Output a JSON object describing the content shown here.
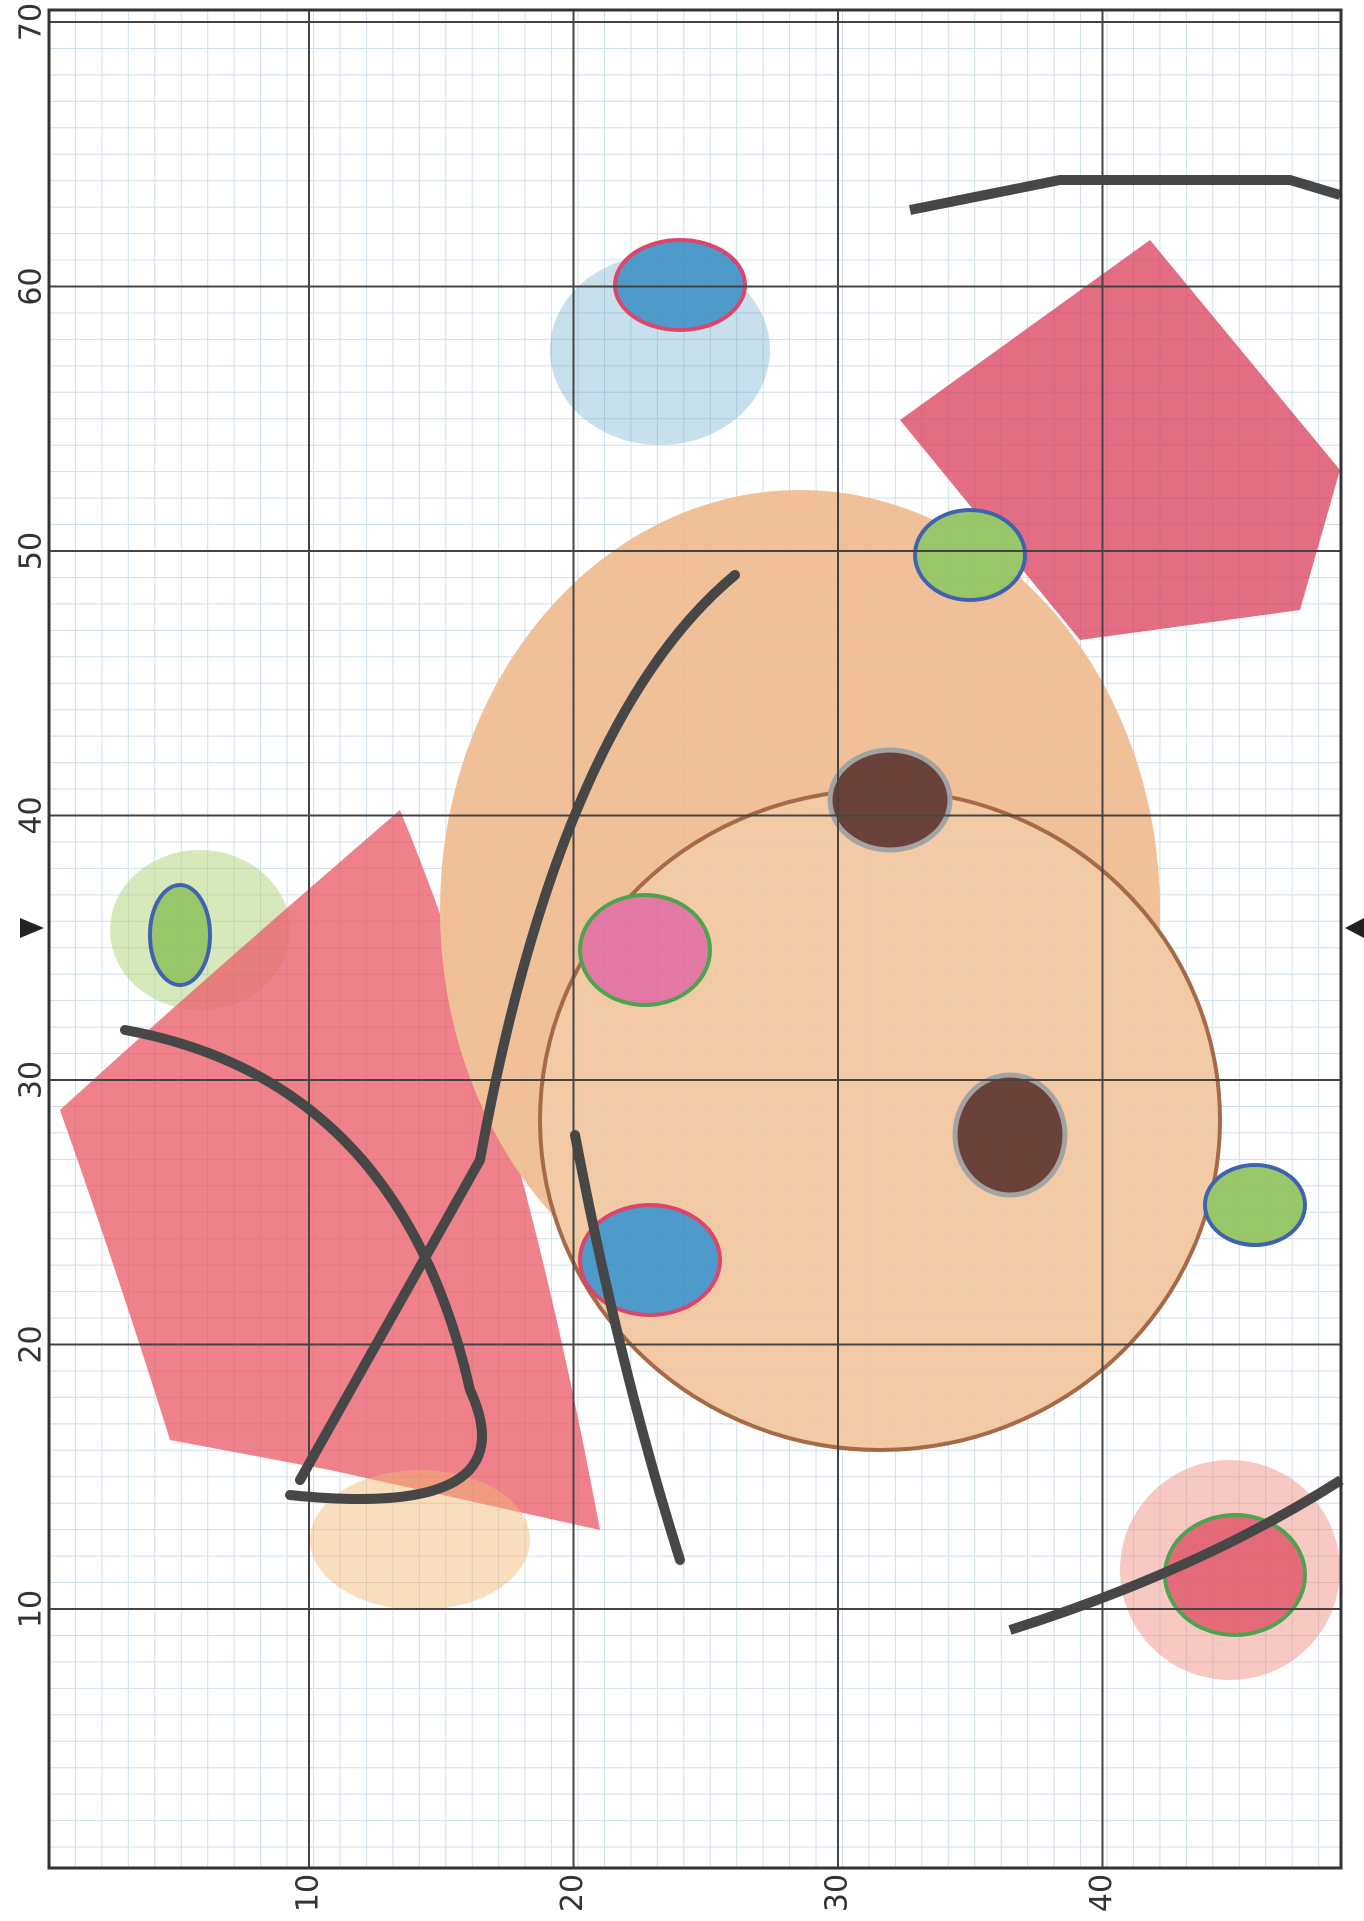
{
  "axis_labels": {
    "left": [
      "70",
      "60",
      "50",
      "40",
      "30",
      "20",
      "10"
    ],
    "bottom": [
      "10",
      "20",
      "30",
      "40"
    ]
  }
}
